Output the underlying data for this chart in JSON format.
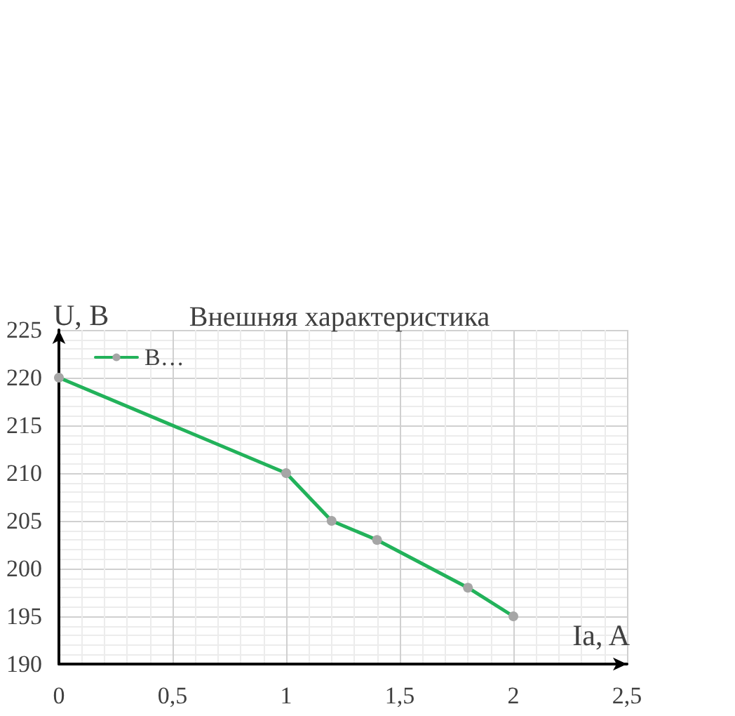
{
  "chart_data": {
    "type": "line",
    "title": "Внешняя характеристика",
    "xlabel": "Ia, A",
    "ylabel": "U, В",
    "x": [
      0,
      1,
      1.2,
      1.4,
      1.8,
      2
    ],
    "series": [
      {
        "name": "В…",
        "color": "#22b25a",
        "values": [
          220,
          210,
          205,
          203,
          198,
          195
        ]
      }
    ],
    "xlim": [
      0,
      2.5
    ],
    "xticks": [
      {
        "value": 0,
        "label": "0"
      },
      {
        "value": 0.5,
        "label": "0,5"
      },
      {
        "value": 1,
        "label": "1"
      },
      {
        "value": 1.5,
        "label": "1,5"
      },
      {
        "value": 2,
        "label": "2"
      },
      {
        "value": 2.5,
        "label": "2,5"
      }
    ],
    "ylim": [
      190,
      225
    ],
    "yticks": [
      190,
      195,
      200,
      205,
      210,
      215,
      220,
      225
    ],
    "grid": true,
    "legend": "top left",
    "marker": "circle",
    "line_style": "solid"
  }
}
